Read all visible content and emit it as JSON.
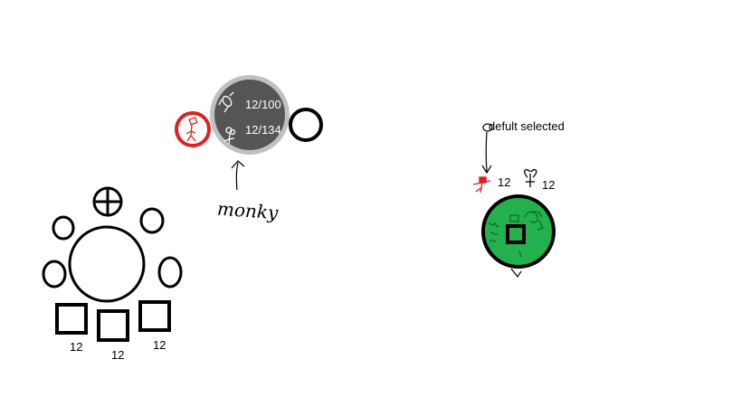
{
  "layout_a": {
    "labels": [
      "12",
      "12",
      "12"
    ]
  },
  "layout_b": {
    "readout_top": "12/100",
    "readout_bottom": "12/134",
    "caption": "monky"
  },
  "layout_c": {
    "note": "defult selected",
    "count_left": "12",
    "count_right": "12"
  },
  "colors": {
    "stroke": "#000000",
    "grey_fill": "#555555",
    "grey_ring": "#c0c0c0",
    "red": "#e02020",
    "green": "#22b14c"
  }
}
